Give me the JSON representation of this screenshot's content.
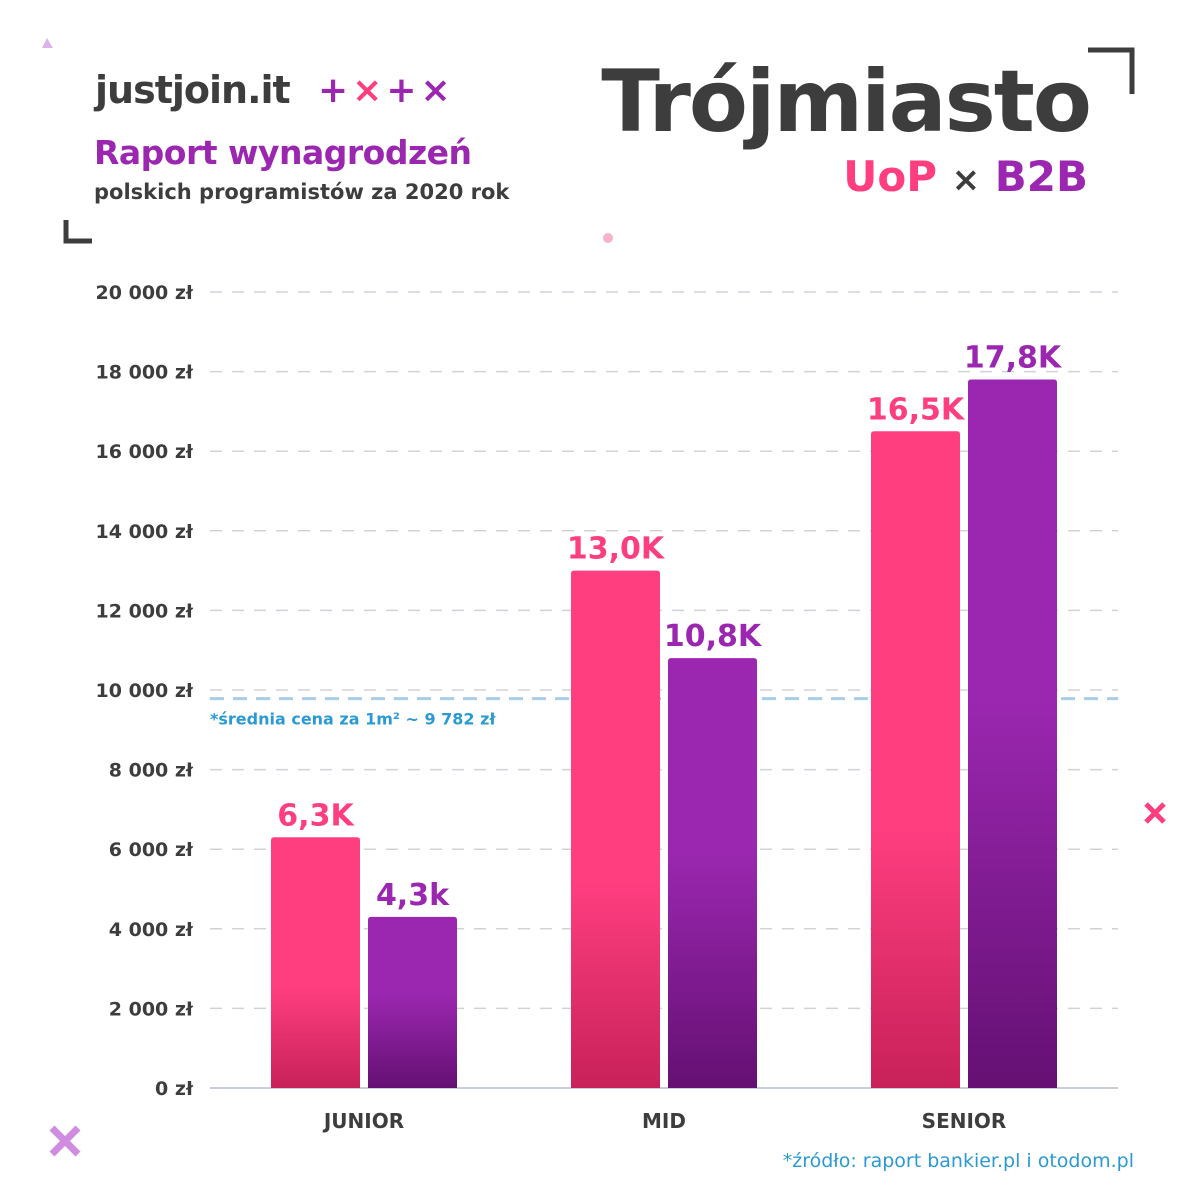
{
  "header": {
    "logo": "justjoin.it",
    "logo_marks": [
      "+",
      "×",
      "+",
      "×"
    ],
    "title": "Raport wynagrodzeń",
    "subtitle": "polskich programistów za 2020 rok",
    "city": "Trójmiasto",
    "legend": {
      "uop": "UoP",
      "separator": "×",
      "b2b": "B2B"
    }
  },
  "footer": {
    "source": "*źródło: raport bankier.pl i otodom.pl"
  },
  "colors": {
    "uop": "#ff3e80",
    "b2b": "#9b27b0",
    "text": "#3d3d3d",
    "reference": "#a8cde8",
    "reference_text": "#2b9ad2",
    "grid": "#d0d4da"
  },
  "chart_data": {
    "type": "bar",
    "title": "Trójmiasto",
    "categories": [
      "JUNIOR",
      "MID",
      "SENIOR"
    ],
    "series": [
      {
        "name": "UoP",
        "values": [
          6300,
          13000,
          16500
        ],
        "labels": [
          "6,3K",
          "13,0K",
          "16,5K"
        ]
      },
      {
        "name": "B2B",
        "values": [
          4300,
          10800,
          17800
        ],
        "labels": [
          "4,3k",
          "10,8K",
          "17,8K"
        ]
      }
    ],
    "ylim": [
      0,
      20000
    ],
    "yticks": [
      0,
      2000,
      4000,
      6000,
      8000,
      10000,
      12000,
      14000,
      16000,
      18000,
      20000
    ],
    "ytick_labels": [
      "0 zł",
      "2 000 zł",
      "4 000 zł",
      "6 000 zł",
      "8 000 zł",
      "10 000 zł",
      "12 000 zł",
      "14 000 zł",
      "16 000 zł",
      "18 000 zł",
      "20 000 zł"
    ],
    "grid": true,
    "reference_line": {
      "value": 9782,
      "label": "*średnia cena za 1m² ~ 9 782 zł"
    },
    "legend_placement": "top-right"
  }
}
